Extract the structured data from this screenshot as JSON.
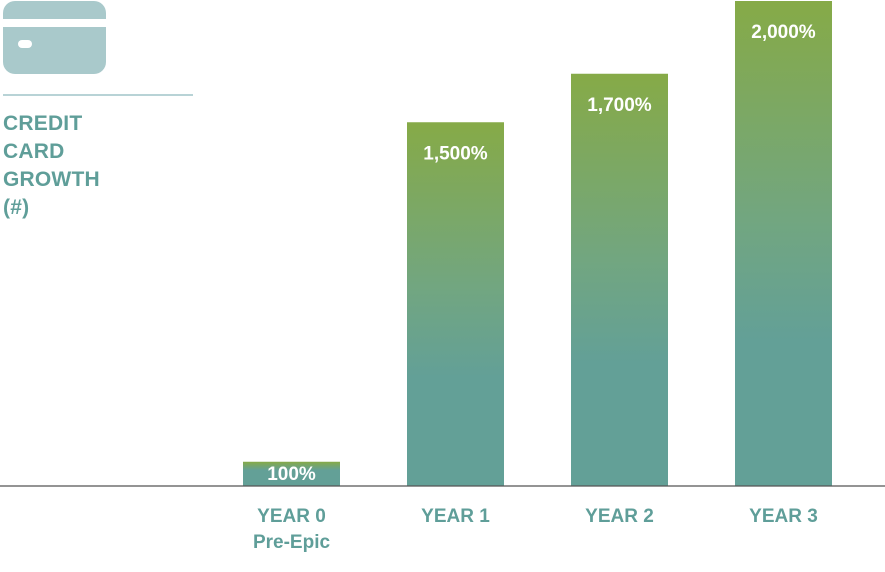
{
  "chart_data": {
    "type": "bar",
    "title_lines": [
      "CREDIT",
      "CARD",
      "GROWTH",
      "(#)"
    ],
    "categories": [
      "YEAR 0",
      "YEAR 1",
      "YEAR 2",
      "YEAR 3"
    ],
    "category_sublabels": [
      "Pre-Epic",
      "",
      "",
      ""
    ],
    "values": [
      100,
      1500,
      1700,
      2000
    ],
    "data_labels": [
      "100%",
      "1,500%",
      "1,700%",
      "2,000%"
    ],
    "ylim": [
      0,
      2000
    ],
    "grid": false,
    "legend": "none",
    "xlabel": "",
    "ylabel": ""
  },
  "colors": {
    "bar_top": "#86aa47",
    "bar_bottom": "#63a097",
    "title": "#5f9e99",
    "icon": "#a9c9cb",
    "baseline": "#555555"
  },
  "icons": {
    "title_icon": "credit-card-icon"
  }
}
